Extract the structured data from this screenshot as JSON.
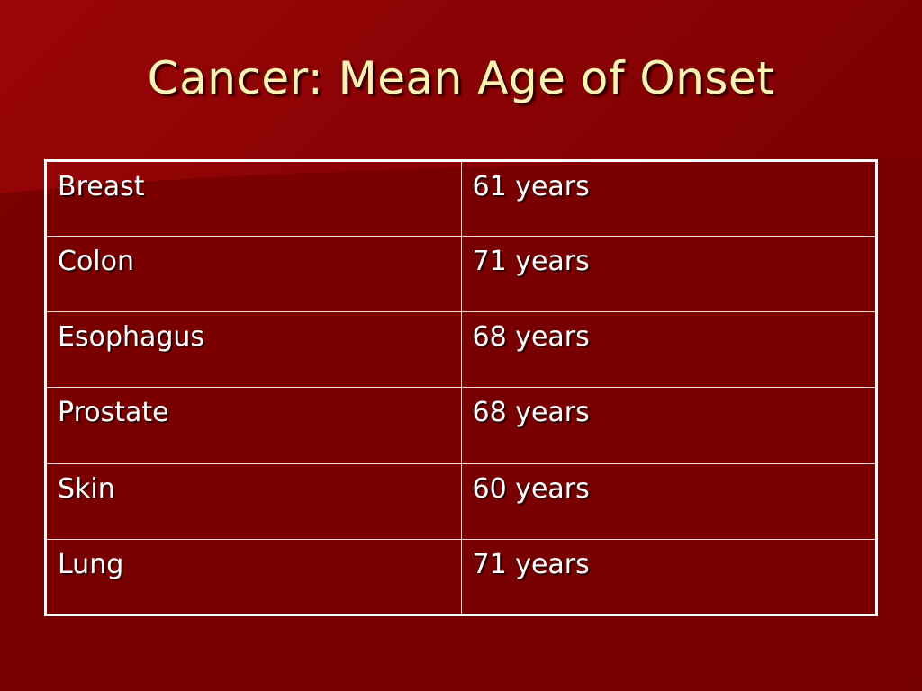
{
  "slide": {
    "title": "Cancer: Mean Age of Onset"
  },
  "table": {
    "rows": [
      {
        "site": "Breast",
        "age": "61 years"
      },
      {
        "site": "Colon",
        "age": "71 years"
      },
      {
        "site": "Esophagus",
        "age": "68 years"
      },
      {
        "site": "Prostate",
        "age": "68 years"
      },
      {
        "site": "Skin",
        "age": "60 years"
      },
      {
        "site": "Lung",
        "age": "71 years"
      }
    ]
  },
  "colors": {
    "background": "#7a0000",
    "title": "#fbf3b4",
    "text": "#ffffff",
    "border": "#ffffff"
  }
}
